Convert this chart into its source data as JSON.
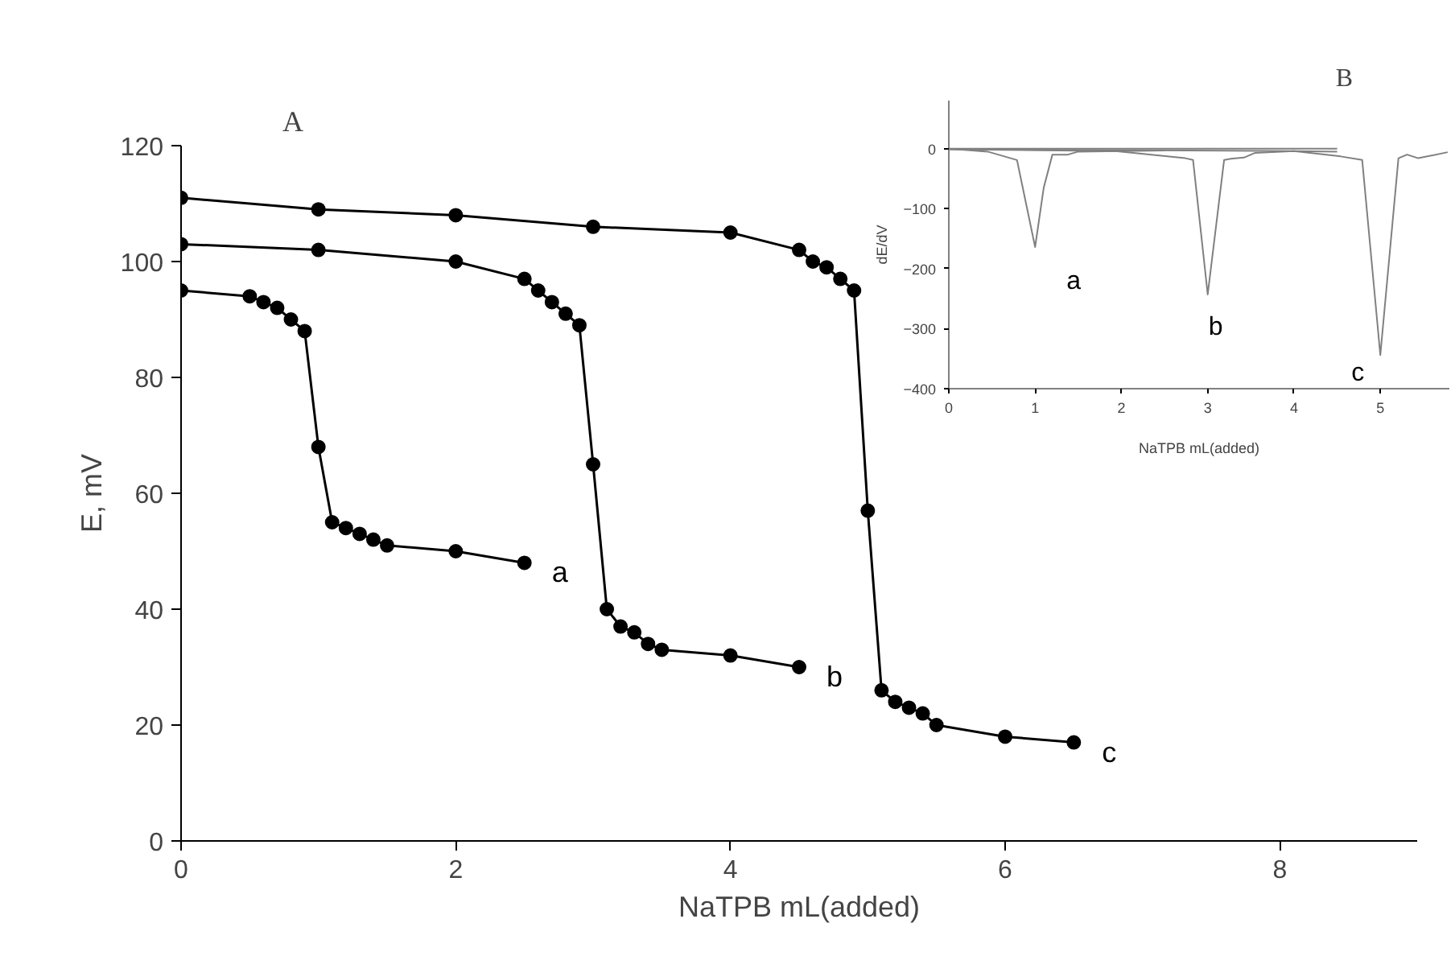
{
  "chart_data": [
    {
      "type": "line",
      "title": "A",
      "xlabel": "NaTPB mL(added)",
      "ylabel": "E, mV",
      "xlim": [
        0,
        9
      ],
      "xticks": [
        0,
        2,
        4,
        6,
        8
      ],
      "ylim": [
        0,
        120
      ],
      "yticks": [
        0,
        20,
        40,
        60,
        80,
        100,
        120
      ],
      "grid": false,
      "marker": "circle",
      "line_style": "solid",
      "series": [
        {
          "name": "a",
          "color": "#000000",
          "x": [
            0,
            0.5,
            0.6,
            0.7,
            0.8,
            0.9,
            1.0,
            1.1,
            1.2,
            1.3,
            1.4,
            1.5,
            2,
            2.5
          ],
          "values": [
            95,
            94,
            93,
            92,
            90,
            88,
            68,
            55,
            54,
            53,
            52,
            51,
            50,
            48
          ]
        },
        {
          "name": "b",
          "color": "#000000",
          "x": [
            0,
            1,
            2,
            2.5,
            2.6,
            2.7,
            2.8,
            2.9,
            3.0,
            3.1,
            3.2,
            3.3,
            3.4,
            3.5,
            4,
            4.5
          ],
          "values": [
            103,
            102,
            100,
            97,
            95,
            93,
            91,
            89,
            65,
            40,
            37,
            36,
            34,
            33,
            32,
            30
          ]
        },
        {
          "name": "c",
          "color": "#000000",
          "x": [
            0,
            1,
            2,
            3,
            4,
            4.5,
            4.6,
            4.7,
            4.8,
            4.9,
            5,
            5.1,
            5.2,
            5.3,
            5.4,
            5.5,
            6,
            6.5
          ],
          "values": [
            111,
            109,
            108,
            106,
            105,
            102,
            100,
            99,
            97,
            95,
            57,
            26,
            24,
            23,
            22,
            20,
            18,
            17
          ]
        }
      ]
    },
    {
      "type": "line",
      "title": "B",
      "xlabel": "NaTPB mL(added)",
      "ylabel": "dE/dV",
      "xlim": [
        0,
        5.8
      ],
      "xticks": [
        0,
        1,
        2,
        3,
        4,
        5
      ],
      "ylim": [
        -400,
        80
      ],
      "yticks": [
        0,
        -100,
        -200,
        -300,
        -400
      ],
      "grid": false,
      "marker": "none",
      "line_style": "solid",
      "series": [
        {
          "name": "a",
          "color": "#808080",
          "x": [
            0,
            0.45,
            0.79,
            1.0,
            1.1,
            1.2,
            1.38,
            1.5,
            2.0,
            2.5
          ],
          "values": [
            0,
            -5,
            -19,
            -164,
            -65,
            -10,
            -10,
            -5,
            -4,
            -3
          ]
        },
        {
          "name": "b",
          "color": "#808080",
          "x": [
            0,
            1.93,
            2.74,
            2.83,
            3.0,
            3.19,
            3.27,
            3.42,
            3.55,
            4.0,
            4.5
          ],
          "values": [
            -1,
            -4,
            -16,
            -19,
            -243,
            -19,
            -17,
            -15,
            -7,
            -4,
            -5
          ]
        },
        {
          "name": "c",
          "color": "#808080",
          "x": [
            0,
            4.0,
            4.54,
            4.79,
            5.0,
            5.21,
            5.31,
            5.44,
            5.78
          ],
          "values": [
            -1,
            -4,
            -13,
            -19,
            -344,
            -16,
            -10,
            -16,
            -6
          ]
        },
        {
          "color": "#808080",
          "x": [
            0,
            4.5
          ],
          "values": [
            0,
            0
          ]
        }
      ]
    }
  ]
}
